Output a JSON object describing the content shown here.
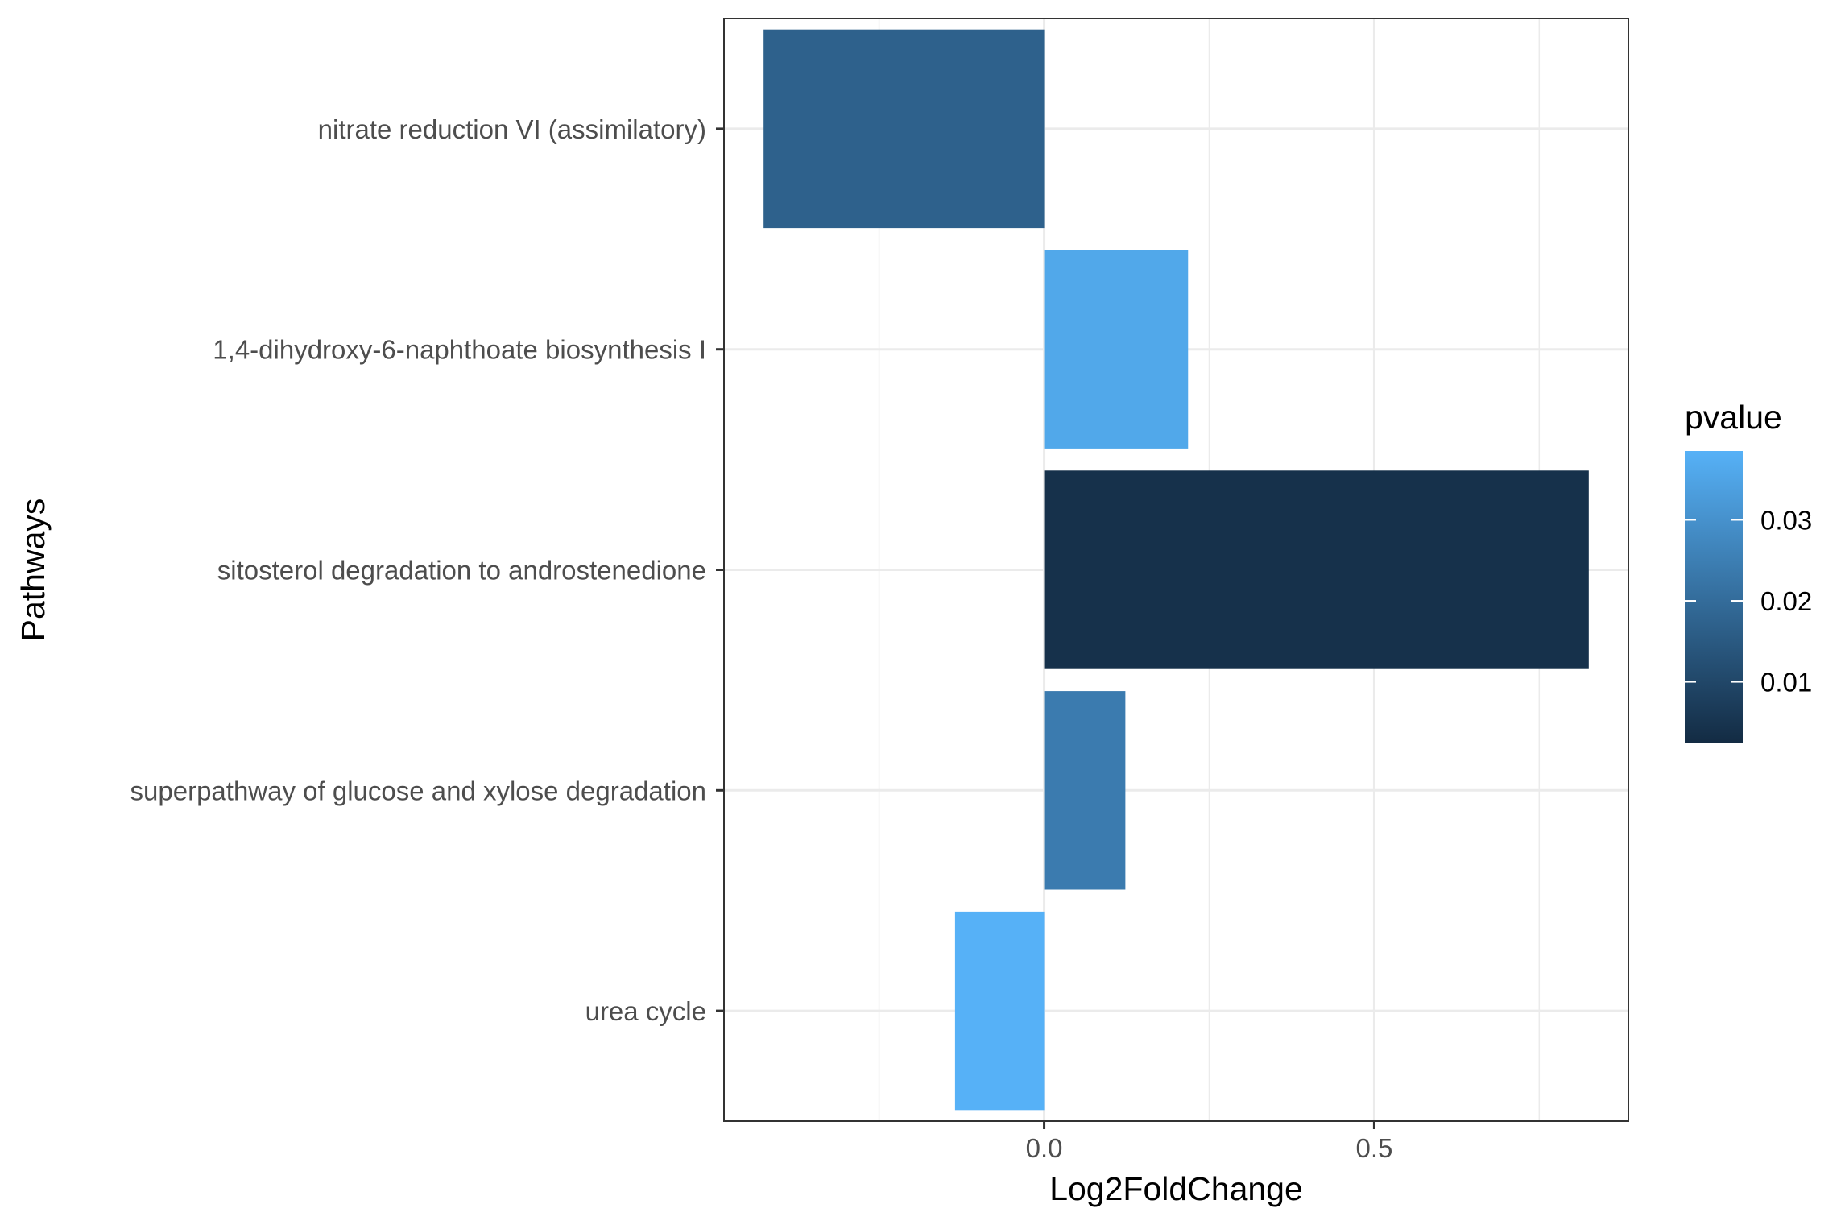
{
  "chart_data": {
    "type": "bar",
    "orientation": "horizontal",
    "categories": [
      "nitrate reduction VI (assimilatory)",
      "1,4-dihydroxy-6-naphthoate biosynthesis I",
      "sitosterol degradation to androstenedione",
      "superpathway of glucose and xylose degradation",
      "urea cycle"
    ],
    "values": [
      -0.425,
      0.218,
      0.825,
      0.123,
      -0.135
    ],
    "color_values": [
      0.017,
      0.036,
      0.004,
      0.024,
      0.039
    ],
    "xlabel": "Log2FoldChange",
    "ylabel": "Pathways",
    "xlim": [
      -0.485,
      0.885
    ],
    "xticks": [
      0.0,
      0.5
    ],
    "xtick_labels": [
      "0.0",
      "0.5"
    ],
    "grid": true,
    "legend": {
      "title": "pvalue",
      "type": "colorbar",
      "placement": "right",
      "range": [
        0.0025,
        0.0385
      ],
      "ticks": [
        0.01,
        0.02,
        0.03
      ],
      "tick_labels": [
        "0.01",
        "0.02",
        "0.03"
      ],
      "low_color": "#132B43",
      "high_color": "#56B1F7"
    }
  }
}
